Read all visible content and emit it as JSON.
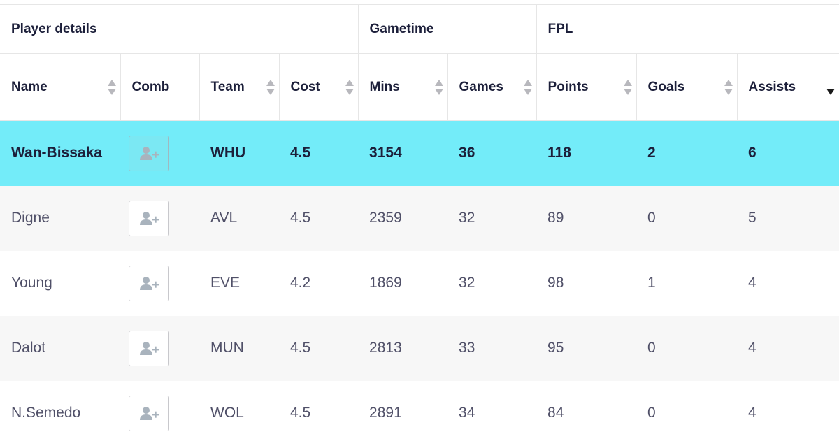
{
  "groups": [
    {
      "label": "Player details"
    },
    {
      "label": "Gametime"
    },
    {
      "label": "FPL"
    }
  ],
  "columns": [
    {
      "label": "Name",
      "sortable": true
    },
    {
      "label": "Comb",
      "sortable": false
    },
    {
      "label": "Team",
      "sortable": true
    },
    {
      "label": "Cost",
      "sortable": true
    },
    {
      "label": "Mins",
      "sortable": true
    },
    {
      "label": "Games",
      "sortable": true
    },
    {
      "label": "Points",
      "sortable": true
    },
    {
      "label": "Goals",
      "sortable": true
    },
    {
      "label": "Assists",
      "sortable": true,
      "sort_state": "descending"
    }
  ],
  "rows": [
    {
      "name": "Wan-Bissaka",
      "team": "WHU",
      "cost": "4.5",
      "mins": "3154",
      "games": "36",
      "points": "118",
      "goals": "2",
      "assists": "6",
      "highlighted": true
    },
    {
      "name": "Digne",
      "team": "AVL",
      "cost": "4.5",
      "mins": "2359",
      "games": "32",
      "points": "89",
      "goals": "0",
      "assists": "5"
    },
    {
      "name": "Young",
      "team": "EVE",
      "cost": "4.2",
      "mins": "1869",
      "games": "32",
      "points": "98",
      "goals": "1",
      "assists": "4"
    },
    {
      "name": "Dalot",
      "team": "MUN",
      "cost": "4.5",
      "mins": "2813",
      "games": "33",
      "points": "95",
      "goals": "0",
      "assists": "4"
    },
    {
      "name": "N.Semedo",
      "team": "WOL",
      "cost": "4.5",
      "mins": "2891",
      "games": "34",
      "points": "84",
      "goals": "0",
      "assists": "4"
    }
  ],
  "icons": {
    "comb_button": "add-user-icon",
    "sort": "sort-arrows-icon"
  },
  "colors": {
    "highlight_row": "#73ecf9",
    "alt_row": "#f7f7f7",
    "text_dark": "#1c1f3a",
    "text_muted": "#505068"
  }
}
